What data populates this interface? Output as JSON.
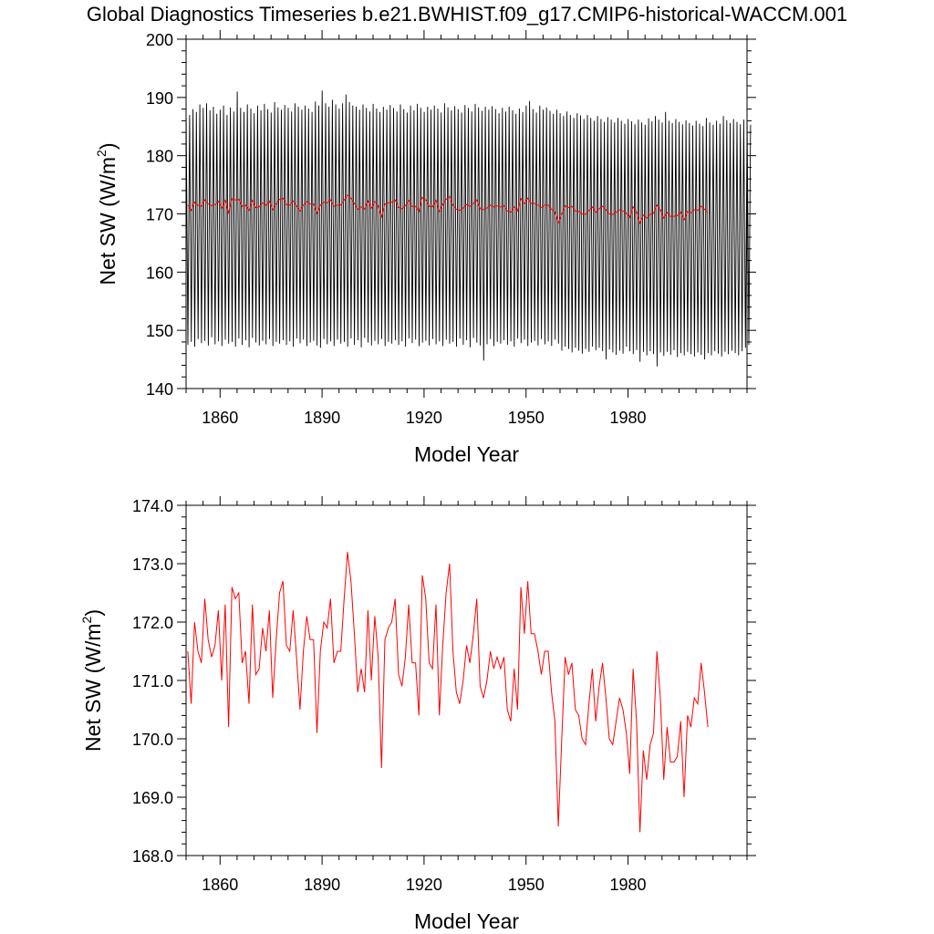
{
  "title": "Global Diagnostics Timeseries b.e21.BWHIST.f09_g17.CMIP6-historical-WACCM.001",
  "colors": {
    "monthly": "#000000",
    "annual": "#ff0000",
    "frame": "#000000"
  },
  "chart_data": [
    {
      "type": "line",
      "xlabel": "Model Year",
      "ylabel_main": "Net SW (W/m",
      "ylabel_sup": "2",
      "ylabel_end": ")",
      "xlim": [
        1850,
        2015
      ],
      "ylim": [
        140,
        200
      ],
      "xticks": [
        1860,
        1890,
        1920,
        1950,
        1980
      ],
      "xtick_labels": [
        "1860",
        "1890",
        "1920",
        "1950",
        "1980"
      ],
      "yticks": [
        140,
        150,
        160,
        170,
        180,
        190,
        200
      ],
      "ytick_labels": [
        "140",
        "150",
        "160",
        "170",
        "180",
        "190",
        "200"
      ],
      "grid": false,
      "series": [
        {
          "kind": "monthly",
          "color": "#000000",
          "x_start": 1850,
          "period_years": 1,
          "peak_month": 0.04,
          "trough_month": 0.54,
          "max_values": [
            186.5,
            187.0,
            188.0,
            187.5,
            188.8,
            188.2,
            189.0,
            187.8,
            188.4,
            187.2,
            187.9,
            188.6,
            187.0,
            188.3,
            187.6,
            191.0,
            188.2,
            187.5,
            188.8,
            188.1,
            187.3,
            188.6,
            187.8,
            188.9,
            188.0,
            187.4,
            189.2,
            188.3,
            187.9,
            188.7,
            188.2,
            187.6,
            189.0,
            188.4,
            187.9,
            188.6,
            188.1,
            187.5,
            189.3,
            188.6,
            191.2,
            189.0,
            188.4,
            189.6,
            188.8,
            188.1,
            189.0,
            190.5,
            189.2,
            188.6,
            188.4,
            187.9,
            188.8,
            188.2,
            187.6,
            188.9,
            188.1,
            187.5,
            188.4,
            187.9,
            188.7,
            188.2,
            187.6,
            188.8,
            188.0,
            187.4,
            188.6,
            187.8,
            188.9,
            188.2,
            187.5,
            188.4,
            187.9,
            188.6,
            188.1,
            187.4,
            189.0,
            188.3,
            187.8,
            188.5,
            188.0,
            187.4,
            188.7,
            188.2,
            187.6,
            188.9,
            188.3,
            187.7,
            188.4,
            187.9,
            188.5,
            188.0,
            187.3,
            188.2,
            187.6,
            188.4,
            187.8,
            187.2,
            188.1,
            187.5,
            188.6,
            189.4,
            188.0,
            187.4,
            188.6,
            187.9,
            188.3,
            187.7,
            187.2,
            187.9,
            187.3,
            186.8,
            187.6,
            187.0,
            186.5,
            187.3,
            186.9,
            186.3,
            187.0,
            186.5,
            186.0,
            186.8,
            186.3,
            185.8,
            186.6,
            186.2,
            185.7,
            186.5,
            186.0,
            185.5,
            186.3,
            185.9,
            185.4,
            186.2,
            185.7,
            185.3,
            186.4,
            185.9,
            186.8,
            186.2,
            185.7,
            187.5,
            186.0,
            185.6,
            186.3,
            185.8,
            185.4,
            186.1,
            185.6,
            185.2,
            186.0,
            185.5,
            185.1,
            186.5,
            185.7,
            185.3,
            186.0,
            185.5,
            186.8,
            186.1,
            185.6,
            186.3,
            185.8,
            185.4,
            186.2,
            185.7,
            185.3
          ],
          "min_values": [
            147.5,
            148.0,
            147.2,
            148.5,
            147.8,
            148.2,
            147.4,
            148.8,
            147.6,
            148.1,
            147.3,
            148.4,
            147.7,
            148.0,
            147.2,
            148.6,
            147.5,
            148.3,
            147.1,
            148.7,
            147.9,
            147.4,
            148.2,
            147.6,
            148.5,
            147.3,
            148.0,
            147.7,
            148.3,
            147.5,
            148.1,
            147.2,
            148.6,
            147.8,
            148.4,
            147.3,
            147.9,
            148.2,
            147.4,
            147.0,
            148.5,
            147.6,
            148.1,
            147.3,
            148.4,
            147.7,
            148.0,
            147.2,
            148.6,
            147.5,
            148.3,
            147.1,
            148.7,
            147.9,
            147.4,
            148.2,
            147.6,
            148.5,
            147.3,
            148.0,
            147.7,
            148.3,
            147.5,
            148.1,
            147.2,
            148.6,
            147.8,
            148.4,
            147.3,
            147.9,
            148.2,
            147.4,
            148.5,
            147.6,
            148.1,
            147.3,
            148.4,
            147.7,
            148.0,
            147.2,
            148.6,
            147.5,
            148.3,
            147.1,
            148.7,
            147.9,
            147.4,
            144.8,
            147.6,
            148.5,
            147.3,
            148.0,
            147.7,
            148.3,
            147.5,
            148.1,
            147.2,
            148.6,
            147.8,
            148.4,
            147.3,
            147.9,
            148.2,
            147.4,
            148.5,
            147.6,
            148.1,
            147.3,
            148.4,
            147.7,
            146.5,
            147.2,
            146.8,
            146.2,
            147.0,
            146.5,
            146.0,
            146.8,
            146.3,
            147.2,
            146.6,
            147.0,
            146.4,
            145.0,
            146.7,
            146.2,
            145.8,
            146.5,
            146.0,
            147.2,
            146.4,
            145.9,
            146.6,
            144.6,
            146.3,
            145.7,
            146.4,
            145.9,
            143.8,
            146.2,
            145.6,
            146.3,
            145.8,
            146.6,
            145.4,
            146.1,
            145.7,
            146.3,
            145.9,
            145.5,
            146.2,
            145.8,
            145.0,
            146.1,
            145.7,
            146.4,
            146.0,
            145.5,
            146.3,
            145.9,
            146.5,
            146.1,
            145.7,
            146.4,
            147.0,
            147.5
          ]
        },
        {
          "kind": "annual",
          "color": "#ff0000",
          "x_start": 1850,
          "values": [
            171.5,
            170.6,
            172.0,
            171.5,
            171.3,
            172.4,
            171.7,
            171.4,
            171.6,
            172.2,
            171.0,
            172.3,
            170.2,
            172.6,
            172.4,
            172.5,
            171.3,
            171.5,
            170.6,
            172.3,
            171.1,
            171.2,
            171.9,
            171.5,
            172.2,
            170.7,
            171.7,
            172.5,
            172.7,
            171.6,
            171.5,
            172.2,
            171.4,
            170.5,
            171.5,
            172.1,
            171.7,
            171.7,
            170.1,
            171.5,
            172.0,
            171.9,
            172.4,
            171.3,
            171.5,
            171.5,
            172.4,
            173.2,
            172.7,
            171.8,
            170.8,
            171.2,
            170.8,
            172.2,
            171.0,
            172.1,
            171.4,
            169.5,
            171.7,
            171.9,
            172.0,
            172.4,
            171.1,
            170.9,
            171.4,
            172.3,
            171.3,
            171.3,
            170.4,
            172.8,
            172.4,
            171.3,
            171.2,
            172.3,
            170.4,
            171.6,
            172.5,
            173.0,
            171.5,
            170.8,
            170.6,
            171.0,
            171.6,
            171.3,
            171.8,
            172.4,
            170.9,
            170.7,
            171.0,
            171.5,
            171.2,
            171.4,
            171.2,
            171.4,
            170.5,
            170.3,
            171.2,
            170.5,
            172.6,
            171.8,
            172.7,
            171.8,
            171.8,
            171.5,
            171.1,
            171.5,
            171.5,
            170.8,
            170.3,
            168.5,
            170.0,
            171.4,
            171.1,
            171.3,
            170.5,
            170.4,
            170.0,
            169.9,
            170.6,
            171.2,
            170.3,
            170.9,
            171.3,
            170.7,
            170.0,
            169.9,
            170.3,
            170.7,
            170.5,
            170.1,
            169.4,
            171.2,
            170.3,
            168.4,
            169.8,
            169.3,
            169.9,
            170.1,
            171.5,
            170.7,
            169.3,
            170.2,
            169.6,
            169.6,
            169.7,
            170.3,
            169.0,
            170.4,
            170.2,
            170.7,
            170.6,
            171.3,
            170.8,
            170.2
          ]
        }
      ]
    },
    {
      "type": "line",
      "xlabel": "Model Year",
      "ylabel_main": "Net SW (W/m",
      "ylabel_sup": "2",
      "ylabel_end": ")",
      "xlim": [
        1850,
        2015
      ],
      "ylim": [
        168,
        174
      ],
      "xticks": [
        1860,
        1890,
        1920,
        1950,
        1980
      ],
      "xtick_labels": [
        "1860",
        "1890",
        "1920",
        "1950",
        "1980"
      ],
      "yticks": [
        168,
        169,
        170,
        171,
        172,
        173,
        174
      ],
      "ytick_labels": [
        "168.0",
        "169.0",
        "170.0",
        "171.0",
        "172.0",
        "173.0",
        "174.0"
      ],
      "grid": false,
      "series": [
        {
          "kind": "annual",
          "color": "#ff0000",
          "x_start": 1850,
          "values": [
            171.5,
            170.6,
            172.0,
            171.5,
            171.3,
            172.4,
            171.7,
            171.4,
            171.6,
            172.2,
            171.0,
            172.3,
            170.2,
            172.6,
            172.4,
            172.5,
            171.3,
            171.5,
            170.6,
            172.3,
            171.1,
            171.2,
            171.9,
            171.5,
            172.2,
            170.7,
            171.7,
            172.5,
            172.7,
            171.6,
            171.5,
            172.2,
            171.4,
            170.5,
            171.5,
            172.1,
            171.7,
            171.7,
            170.1,
            171.5,
            172.0,
            171.9,
            172.4,
            171.3,
            171.5,
            171.5,
            172.4,
            173.2,
            172.7,
            171.8,
            170.8,
            171.2,
            170.8,
            172.2,
            171.0,
            172.1,
            171.4,
            169.5,
            171.7,
            171.9,
            172.0,
            172.4,
            171.1,
            170.9,
            171.4,
            172.3,
            171.3,
            171.3,
            170.4,
            172.8,
            172.4,
            171.3,
            171.2,
            172.3,
            170.4,
            171.6,
            172.5,
            173.0,
            171.5,
            170.8,
            170.6,
            171.0,
            171.6,
            171.3,
            171.8,
            172.4,
            170.9,
            170.7,
            171.0,
            171.5,
            171.2,
            171.4,
            171.2,
            171.4,
            170.5,
            170.3,
            171.2,
            170.5,
            172.6,
            171.8,
            172.7,
            171.8,
            171.8,
            171.5,
            171.1,
            171.5,
            171.5,
            170.8,
            170.3,
            168.5,
            170.0,
            171.4,
            171.1,
            171.3,
            170.5,
            170.4,
            170.0,
            169.9,
            170.6,
            171.2,
            170.3,
            170.9,
            171.3,
            170.7,
            170.0,
            169.9,
            170.3,
            170.7,
            170.5,
            170.1,
            169.4,
            171.2,
            170.3,
            168.4,
            169.8,
            169.3,
            169.9,
            170.1,
            171.5,
            170.7,
            169.3,
            170.2,
            169.6,
            169.6,
            169.7,
            170.3,
            169.0,
            170.4,
            170.2,
            170.7,
            170.6,
            171.3,
            170.8,
            170.2
          ]
        }
      ]
    }
  ]
}
